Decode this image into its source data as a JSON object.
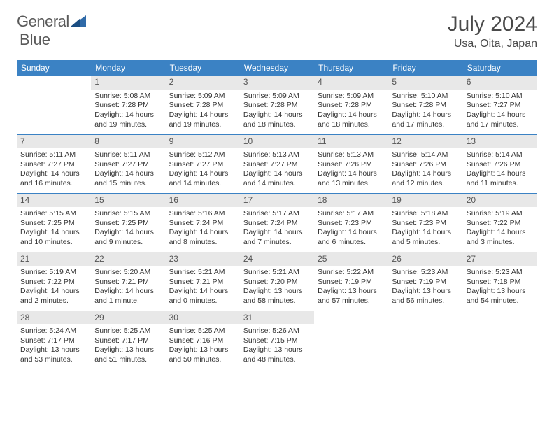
{
  "brand": {
    "name_part1": "General",
    "name_part2": "Blue"
  },
  "title": "July 2024",
  "location": "Usa, Oita, Japan",
  "header": {
    "bg_color": "#3b82c4",
    "text_color": "#ffffff",
    "days": [
      "Sunday",
      "Monday",
      "Tuesday",
      "Wednesday",
      "Thursday",
      "Friday",
      "Saturday"
    ]
  },
  "style": {
    "daynum_bg": "#e8e8e8",
    "border_color": "#3b82c4",
    "body_fontsize": 10.5
  },
  "grid": [
    [
      null,
      {
        "n": "1",
        "sr": "Sunrise: 5:08 AM",
        "ss": "Sunset: 7:28 PM",
        "d1": "Daylight: 14 hours",
        "d2": "and 19 minutes."
      },
      {
        "n": "2",
        "sr": "Sunrise: 5:09 AM",
        "ss": "Sunset: 7:28 PM",
        "d1": "Daylight: 14 hours",
        "d2": "and 19 minutes."
      },
      {
        "n": "3",
        "sr": "Sunrise: 5:09 AM",
        "ss": "Sunset: 7:28 PM",
        "d1": "Daylight: 14 hours",
        "d2": "and 18 minutes."
      },
      {
        "n": "4",
        "sr": "Sunrise: 5:09 AM",
        "ss": "Sunset: 7:28 PM",
        "d1": "Daylight: 14 hours",
        "d2": "and 18 minutes."
      },
      {
        "n": "5",
        "sr": "Sunrise: 5:10 AM",
        "ss": "Sunset: 7:28 PM",
        "d1": "Daylight: 14 hours",
        "d2": "and 17 minutes."
      },
      {
        "n": "6",
        "sr": "Sunrise: 5:10 AM",
        "ss": "Sunset: 7:27 PM",
        "d1": "Daylight: 14 hours",
        "d2": "and 17 minutes."
      }
    ],
    [
      {
        "n": "7",
        "sr": "Sunrise: 5:11 AM",
        "ss": "Sunset: 7:27 PM",
        "d1": "Daylight: 14 hours",
        "d2": "and 16 minutes."
      },
      {
        "n": "8",
        "sr": "Sunrise: 5:11 AM",
        "ss": "Sunset: 7:27 PM",
        "d1": "Daylight: 14 hours",
        "d2": "and 15 minutes."
      },
      {
        "n": "9",
        "sr": "Sunrise: 5:12 AM",
        "ss": "Sunset: 7:27 PM",
        "d1": "Daylight: 14 hours",
        "d2": "and 14 minutes."
      },
      {
        "n": "10",
        "sr": "Sunrise: 5:13 AM",
        "ss": "Sunset: 7:27 PM",
        "d1": "Daylight: 14 hours",
        "d2": "and 14 minutes."
      },
      {
        "n": "11",
        "sr": "Sunrise: 5:13 AM",
        "ss": "Sunset: 7:26 PM",
        "d1": "Daylight: 14 hours",
        "d2": "and 13 minutes."
      },
      {
        "n": "12",
        "sr": "Sunrise: 5:14 AM",
        "ss": "Sunset: 7:26 PM",
        "d1": "Daylight: 14 hours",
        "d2": "and 12 minutes."
      },
      {
        "n": "13",
        "sr": "Sunrise: 5:14 AM",
        "ss": "Sunset: 7:26 PM",
        "d1": "Daylight: 14 hours",
        "d2": "and 11 minutes."
      }
    ],
    [
      {
        "n": "14",
        "sr": "Sunrise: 5:15 AM",
        "ss": "Sunset: 7:25 PM",
        "d1": "Daylight: 14 hours",
        "d2": "and 10 minutes."
      },
      {
        "n": "15",
        "sr": "Sunrise: 5:15 AM",
        "ss": "Sunset: 7:25 PM",
        "d1": "Daylight: 14 hours",
        "d2": "and 9 minutes."
      },
      {
        "n": "16",
        "sr": "Sunrise: 5:16 AM",
        "ss": "Sunset: 7:24 PM",
        "d1": "Daylight: 14 hours",
        "d2": "and 8 minutes."
      },
      {
        "n": "17",
        "sr": "Sunrise: 5:17 AM",
        "ss": "Sunset: 7:24 PM",
        "d1": "Daylight: 14 hours",
        "d2": "and 7 minutes."
      },
      {
        "n": "18",
        "sr": "Sunrise: 5:17 AM",
        "ss": "Sunset: 7:23 PM",
        "d1": "Daylight: 14 hours",
        "d2": "and 6 minutes."
      },
      {
        "n": "19",
        "sr": "Sunrise: 5:18 AM",
        "ss": "Sunset: 7:23 PM",
        "d1": "Daylight: 14 hours",
        "d2": "and 5 minutes."
      },
      {
        "n": "20",
        "sr": "Sunrise: 5:19 AM",
        "ss": "Sunset: 7:22 PM",
        "d1": "Daylight: 14 hours",
        "d2": "and 3 minutes."
      }
    ],
    [
      {
        "n": "21",
        "sr": "Sunrise: 5:19 AM",
        "ss": "Sunset: 7:22 PM",
        "d1": "Daylight: 14 hours",
        "d2": "and 2 minutes."
      },
      {
        "n": "22",
        "sr": "Sunrise: 5:20 AM",
        "ss": "Sunset: 7:21 PM",
        "d1": "Daylight: 14 hours",
        "d2": "and 1 minute."
      },
      {
        "n": "23",
        "sr": "Sunrise: 5:21 AM",
        "ss": "Sunset: 7:21 PM",
        "d1": "Daylight: 14 hours",
        "d2": "and 0 minutes."
      },
      {
        "n": "24",
        "sr": "Sunrise: 5:21 AM",
        "ss": "Sunset: 7:20 PM",
        "d1": "Daylight: 13 hours",
        "d2": "and 58 minutes."
      },
      {
        "n": "25",
        "sr": "Sunrise: 5:22 AM",
        "ss": "Sunset: 7:19 PM",
        "d1": "Daylight: 13 hours",
        "d2": "and 57 minutes."
      },
      {
        "n": "26",
        "sr": "Sunrise: 5:23 AM",
        "ss": "Sunset: 7:19 PM",
        "d1": "Daylight: 13 hours",
        "d2": "and 56 minutes."
      },
      {
        "n": "27",
        "sr": "Sunrise: 5:23 AM",
        "ss": "Sunset: 7:18 PM",
        "d1": "Daylight: 13 hours",
        "d2": "and 54 minutes."
      }
    ],
    [
      {
        "n": "28",
        "sr": "Sunrise: 5:24 AM",
        "ss": "Sunset: 7:17 PM",
        "d1": "Daylight: 13 hours",
        "d2": "and 53 minutes."
      },
      {
        "n": "29",
        "sr": "Sunrise: 5:25 AM",
        "ss": "Sunset: 7:17 PM",
        "d1": "Daylight: 13 hours",
        "d2": "and 51 minutes."
      },
      {
        "n": "30",
        "sr": "Sunrise: 5:25 AM",
        "ss": "Sunset: 7:16 PM",
        "d1": "Daylight: 13 hours",
        "d2": "and 50 minutes."
      },
      {
        "n": "31",
        "sr": "Sunrise: 5:26 AM",
        "ss": "Sunset: 7:15 PM",
        "d1": "Daylight: 13 hours",
        "d2": "and 48 minutes."
      },
      null,
      null,
      null
    ]
  ]
}
